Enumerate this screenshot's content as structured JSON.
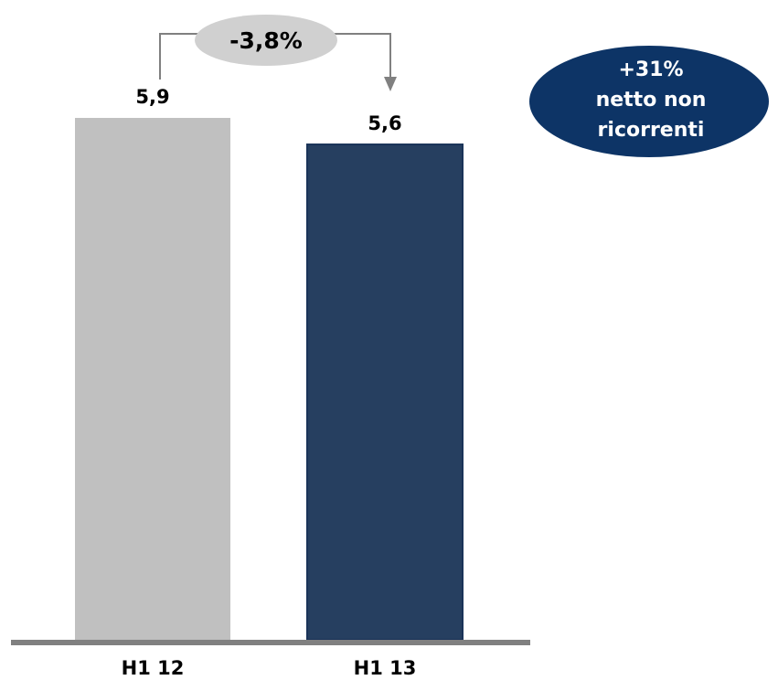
{
  "chart_data": {
    "type": "bar",
    "categories": [
      "H1 12",
      "H1 13"
    ],
    "values": [
      5.9,
      5.6
    ],
    "value_labels": [
      "5,9",
      "5,6"
    ],
    "bar_colors": [
      "#c0c0c0",
      "#263f60"
    ],
    "ylim": [
      0,
      5.9
    ],
    "grid": false,
    "change_label": "-3,8%",
    "callout": {
      "lines": [
        "+31%",
        "netto non",
        "ricorrenti"
      ],
      "color": "#0d3466"
    }
  },
  "colors": {
    "axis": "#808080",
    "connector": "#808080",
    "change_bubble": "#d0d0d0",
    "callout_text": "#ffffff",
    "label_text": "#000000"
  }
}
